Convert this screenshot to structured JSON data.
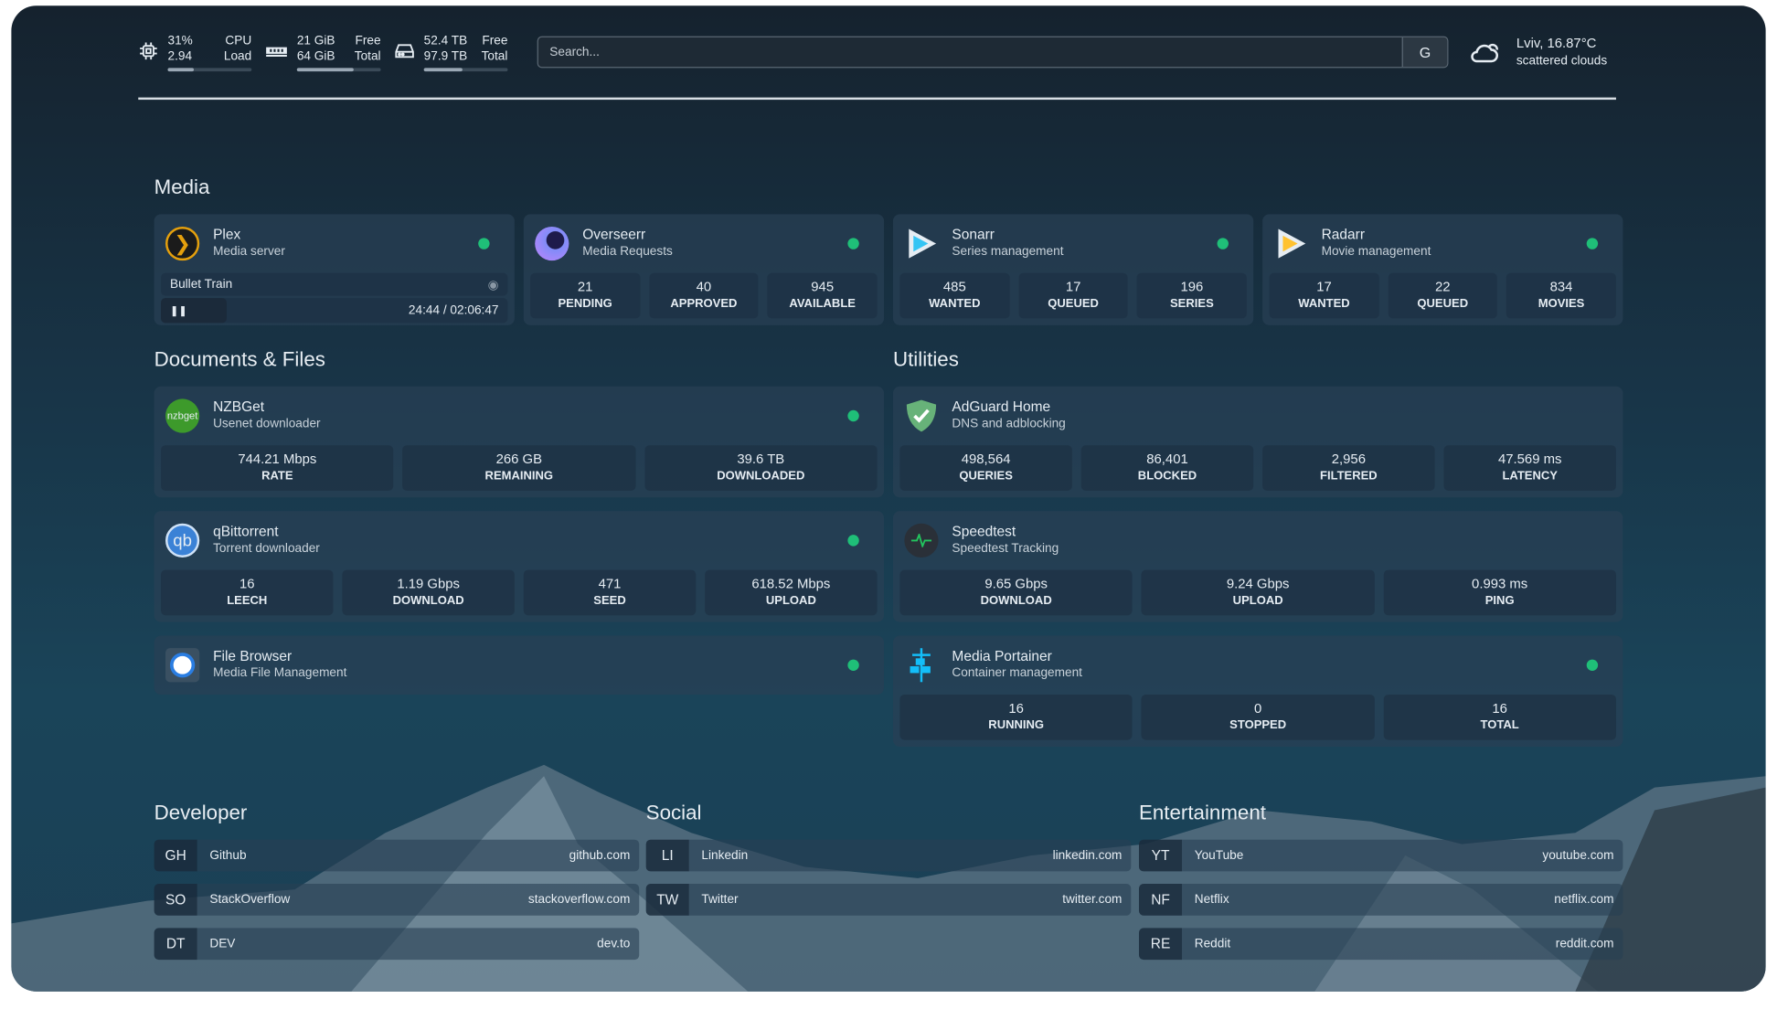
{
  "resources": {
    "cpu": {
      "icon": "cpu-icon",
      "v1": "31%",
      "v2": "2.94",
      "l1": "CPU",
      "l2": "Load",
      "percent": 31
    },
    "memory": {
      "icon": "memory-icon",
      "v1": "21 GiB",
      "v2": "64 GiB",
      "l1": "Free",
      "l2": "Total",
      "percent": 67
    },
    "disk": {
      "icon": "disk-icon",
      "v1": "52.4 TB",
      "v2": "97.9 TB",
      "l1": "Free",
      "l2": "Total",
      "percent": 46
    }
  },
  "search": {
    "placeholder": "Search...",
    "provider": "G"
  },
  "weather": {
    "icon": "cloud-icon",
    "location": "Lviv, 16.87°C",
    "description": "scattered clouds"
  },
  "colors": {
    "status_online": "#1fbf78",
    "accent": "#e6edf3"
  },
  "sections": {
    "media": "Media",
    "documents": "Documents & Files",
    "utilities": "Utilities",
    "developer": "Developer",
    "social": "Social",
    "entertainment": "Entertainment"
  },
  "services": {
    "plex": {
      "name": "Plex",
      "desc": "Media server",
      "icon": "plex-icon",
      "now_playing": "Bullet Train",
      "time": "24:44 / 02:06:47",
      "progress_percent": 19
    },
    "overseerr": {
      "name": "Overseerr",
      "desc": "Media Requests",
      "icon": "overseerr-icon",
      "stats": [
        {
          "v": "21",
          "l": "PENDING"
        },
        {
          "v": "40",
          "l": "APPROVED"
        },
        {
          "v": "945",
          "l": "AVAILABLE"
        }
      ]
    },
    "sonarr": {
      "name": "Sonarr",
      "desc": "Series management",
      "icon": "sonarr-icon",
      "stats": [
        {
          "v": "485",
          "l": "WANTED"
        },
        {
          "v": "17",
          "l": "QUEUED"
        },
        {
          "v": "196",
          "l": "SERIES"
        }
      ]
    },
    "radarr": {
      "name": "Radarr",
      "desc": "Movie management",
      "icon": "radarr-icon",
      "stats": [
        {
          "v": "17",
          "l": "WANTED"
        },
        {
          "v": "22",
          "l": "QUEUED"
        },
        {
          "v": "834",
          "l": "MOVIES"
        }
      ]
    },
    "nzbget": {
      "name": "NZBGet",
      "desc": "Usenet downloader",
      "icon": "nzbget-icon",
      "icon_text": "nzbget",
      "stats": [
        {
          "v": "744.21 Mbps",
          "l": "RATE"
        },
        {
          "v": "266 GB",
          "l": "REMAINING"
        },
        {
          "v": "39.6 TB",
          "l": "DOWNLOADED"
        }
      ]
    },
    "qbittorrent": {
      "name": "qBittorrent",
      "desc": "Torrent downloader",
      "icon": "qbittorrent-icon",
      "icon_text": "qb",
      "stats": [
        {
          "v": "16",
          "l": "LEECH"
        },
        {
          "v": "1.19 Gbps",
          "l": "DOWNLOAD"
        },
        {
          "v": "471",
          "l": "SEED"
        },
        {
          "v": "618.52 Mbps",
          "l": "UPLOAD"
        }
      ]
    },
    "filebrowser": {
      "name": "File Browser",
      "desc": "Media File Management",
      "icon": "floppy-disk-icon",
      "stats": []
    },
    "adguard": {
      "name": "AdGuard Home",
      "desc": "DNS and adblocking",
      "icon": "shield-check-icon",
      "stats": [
        {
          "v": "498,564",
          "l": "QUERIES"
        },
        {
          "v": "86,401",
          "l": "BLOCKED"
        },
        {
          "v": "2,956",
          "l": "FILTERED"
        },
        {
          "v": "47.569 ms",
          "l": "LATENCY"
        }
      ]
    },
    "speedtest": {
      "name": "Speedtest",
      "desc": "Speedtest Tracking",
      "icon": "pulse-icon",
      "stats": [
        {
          "v": "9.65 Gbps",
          "l": "DOWNLOAD"
        },
        {
          "v": "9.24 Gbps",
          "l": "UPLOAD"
        },
        {
          "v": "0.993 ms",
          "l": "PING"
        }
      ]
    },
    "portainer": {
      "name": "Media Portainer",
      "desc": "Container management",
      "icon": "portainer-icon",
      "stats": [
        {
          "v": "16",
          "l": "RUNNING"
        },
        {
          "v": "0",
          "l": "STOPPED"
        },
        {
          "v": "16",
          "l": "TOTAL"
        }
      ]
    }
  },
  "bookmarks": {
    "developer": [
      {
        "abbr": "GH",
        "name": "Github",
        "url": "github.com"
      },
      {
        "abbr": "SO",
        "name": "StackOverflow",
        "url": "stackoverflow.com"
      },
      {
        "abbr": "DT",
        "name": "DEV",
        "url": "dev.to"
      }
    ],
    "social": [
      {
        "abbr": "LI",
        "name": "Linkedin",
        "url": "linkedin.com"
      },
      {
        "abbr": "TW",
        "name": "Twitter",
        "url": "twitter.com"
      }
    ],
    "entertainment": [
      {
        "abbr": "YT",
        "name": "YouTube",
        "url": "youtube.com"
      },
      {
        "abbr": "NF",
        "name": "Netflix",
        "url": "netflix.com"
      },
      {
        "abbr": "RE",
        "name": "Reddit",
        "url": "reddit.com"
      }
    ]
  }
}
